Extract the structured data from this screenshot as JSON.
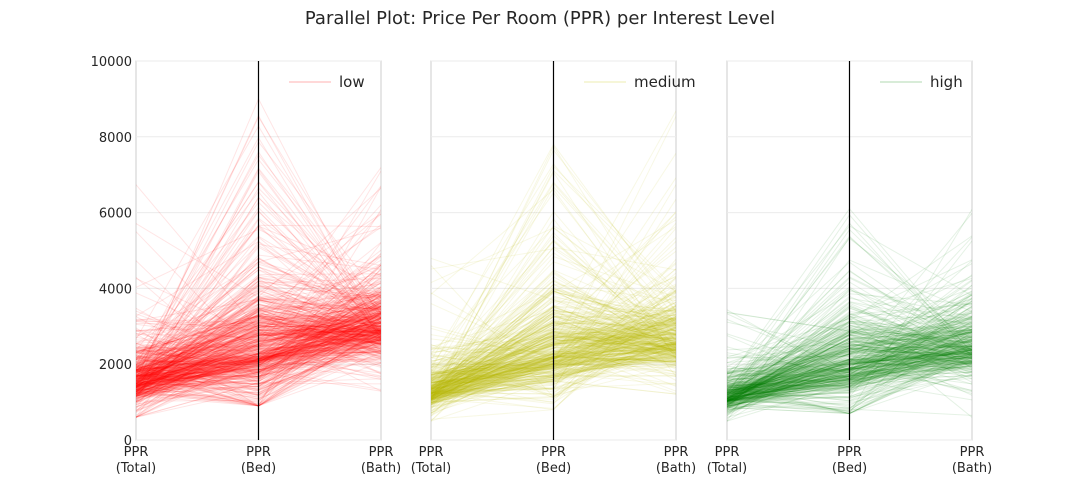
{
  "chart_data": {
    "type": "line",
    "title": "Parallel Plot: Price Per Room (PPR) per Interest Level",
    "xlabel": "",
    "ylabel": "",
    "axes_labels": [
      [
        "PPR",
        "(Total)"
      ],
      [
        "PPR",
        "(Bed)"
      ],
      [
        "PPR",
        "(Bath)"
      ]
    ],
    "ylim": [
      0,
      10000
    ],
    "yticks": [
      "0",
      "2000",
      "4000",
      "6000",
      "8000",
      "10000"
    ],
    "grid": true,
    "legend_position": "top-right",
    "panels": [
      {
        "name": "low",
        "color": "#ff0000",
        "alpha": 0.1,
        "line_count": 600,
        "total": {
          "center": 1500,
          "spread": 650,
          "min": 600,
          "max": 7000
        },
        "bed": {
          "center": 2300,
          "spread": 1400,
          "min": 900,
          "max": 9000
        },
        "bath": {
          "center": 2900,
          "spread": 900,
          "min": 1000,
          "max": 7500
        }
      },
      {
        "name": "medium",
        "color": "#bfbf00",
        "alpha": 0.1,
        "line_count": 450,
        "total": {
          "center": 1250,
          "spread": 500,
          "min": 500,
          "max": 4800
        },
        "bed": {
          "center": 2200,
          "spread": 1200,
          "min": 800,
          "max": 7800
        },
        "bath": {
          "center": 2600,
          "spread": 900,
          "min": 800,
          "max": 8700
        }
      },
      {
        "name": "high",
        "color": "#008000",
        "alpha": 0.1,
        "line_count": 400,
        "total": {
          "center": 1100,
          "spread": 450,
          "min": 500,
          "max": 3600
        },
        "bed": {
          "center": 1900,
          "spread": 1100,
          "min": 700,
          "max": 6100
        },
        "bath": {
          "center": 2400,
          "spread": 900,
          "min": 600,
          "max": 6300
        }
      }
    ]
  }
}
